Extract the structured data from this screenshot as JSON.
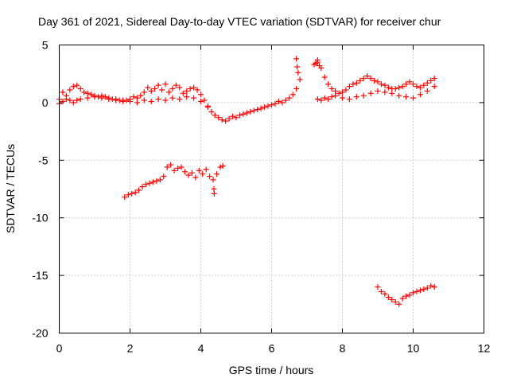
{
  "chart_data": {
    "type": "scatter",
    "title": "Day 361 of 2021, Sidereal Day-to-day VTEC variation (SDTVAR) for receiver chur",
    "xlabel": "GPS time / hours",
    "ylabel": "SDTVAR / TECUs",
    "xlim": [
      0,
      12
    ],
    "ylim": [
      -20,
      5
    ],
    "xticks": [
      "0",
      "2",
      "4",
      "6",
      "8",
      "10",
      "12"
    ],
    "yticks": [
      "5",
      "0",
      "-5",
      "-10",
      "-15",
      "-20"
    ],
    "grid": true,
    "marker": "+",
    "color": "#ff0000",
    "series": [
      {
        "name": "SDTVAR",
        "x": [
          0.0,
          0.1,
          0.2,
          0.3,
          0.4,
          0.5,
          0.6,
          0.7,
          0.8,
          0.9,
          1.0,
          1.1,
          1.2,
          1.3,
          1.4,
          1.5,
          1.6,
          1.7,
          1.8,
          1.9,
          2.0,
          2.1,
          2.2,
          2.3,
          2.4,
          2.5,
          2.6,
          2.7,
          2.8,
          2.9,
          3.0,
          3.1,
          3.2,
          3.3,
          3.4,
          3.5,
          3.6,
          3.7,
          3.8,
          3.9,
          4.0,
          4.1,
          4.2,
          4.3,
          4.4,
          4.5,
          4.6,
          4.7,
          4.8,
          4.9,
          5.0,
          5.1,
          5.2,
          5.3,
          5.4,
          5.5,
          5.6,
          5.7,
          5.8,
          5.9,
          6.0,
          6.1,
          6.2,
          6.3,
          6.4,
          6.5,
          6.6,
          6.7,
          6.8,
          7.2,
          7.3,
          7.4,
          7.5,
          7.6,
          7.7,
          7.8,
          7.9,
          8.0,
          8.1,
          8.2,
          8.3,
          8.4,
          8.5,
          8.6,
          8.7,
          8.8,
          8.9,
          9.0,
          9.1,
          9.2,
          9.3,
          9.4,
          9.5,
          9.6,
          9.7,
          9.8,
          9.9,
          10.0,
          10.1,
          10.2,
          10.3,
          10.4,
          10.5,
          10.6,
          0.0,
          0.1,
          0.2,
          0.3,
          0.4,
          0.5,
          0.6,
          0.8,
          1.0,
          1.2,
          1.4,
          1.6,
          1.8,
          2.0,
          2.2,
          2.4,
          2.6,
          2.8,
          3.0,
          3.2,
          3.4,
          3.6,
          3.8,
          4.0,
          4.2,
          7.3,
          7.4,
          7.5,
          7.6,
          7.7,
          7.8,
          8.0,
          8.2,
          8.4,
          8.6,
          8.8,
          9.0,
          9.2,
          9.4,
          9.6,
          9.8,
          10.0,
          10.2,
          10.4,
          10.6,
          6.7,
          6.72,
          6.75,
          7.25,
          7.3,
          7.35,
          1.85,
          1.95,
          2.05,
          2.15,
          2.25,
          2.35,
          2.45,
          2.55,
          2.65,
          2.75,
          2.85,
          2.95,
          3.05,
          3.15,
          3.25,
          3.35,
          3.45,
          3.55,
          3.65,
          3.75,
          3.85,
          3.95,
          4.05,
          4.15,
          4.25,
          4.35,
          4.45,
          4.55,
          4.62,
          4.37,
          4.38,
          9.0,
          9.1,
          9.2,
          9.3,
          9.4,
          9.5,
          9.6,
          9.7,
          9.8,
          9.9,
          10.0,
          10.1,
          10.2,
          10.3,
          10.4,
          10.5,
          10.6
        ],
        "y": [
          0.3,
          0.9,
          0.6,
          1.1,
          1.4,
          1.5,
          1.2,
          0.9,
          0.8,
          0.7,
          0.6,
          0.5,
          0.6,
          0.5,
          0.4,
          0.3,
          0.3,
          0.2,
          0.1,
          0.2,
          0.3,
          0.5,
          0.4,
          0.6,
          0.9,
          1.3,
          1.0,
          1.2,
          1.5,
          1.1,
          1.6,
          0.9,
          1.2,
          1.5,
          1.3,
          0.8,
          1.0,
          1.2,
          1.3,
          1.1,
          0.7,
          0.2,
          -0.4,
          -0.8,
          -1.1,
          -1.3,
          -1.5,
          -1.6,
          -1.4,
          -1.2,
          -1.3,
          -1.1,
          -1.0,
          -0.9,
          -0.8,
          -0.7,
          -0.6,
          -0.5,
          -0.4,
          -0.3,
          -0.2,
          -0.1,
          0.1,
          0.0,
          0.2,
          0.4,
          0.7,
          1.2,
          2.0,
          3.3,
          3.5,
          3.0,
          2.2,
          1.6,
          1.2,
          1.0,
          0.8,
          0.9,
          1.1,
          1.4,
          1.6,
          1.7,
          1.9,
          2.1,
          2.3,
          2.1,
          1.9,
          1.8,
          1.6,
          1.5,
          1.3,
          1.2,
          1.2,
          1.3,
          1.4,
          1.6,
          1.8,
          1.6,
          1.4,
          1.3,
          1.5,
          1.7,
          1.9,
          2.1,
          -0.1,
          0.1,
          0.3,
          0.2,
          0.0,
          0.2,
          0.3,
          0.4,
          0.5,
          0.4,
          0.3,
          0.2,
          0.2,
          0.1,
          0.0,
          0.2,
          0.1,
          0.3,
          0.2,
          0.4,
          0.3,
          0.5,
          0.4,
          0.1,
          -0.3,
          0.3,
          0.2,
          0.4,
          0.3,
          0.5,
          0.6,
          0.4,
          0.3,
          0.5,
          0.6,
          0.8,
          1.0,
          0.9,
          0.8,
          0.6,
          0.5,
          0.4,
          0.7,
          1.0,
          1.4,
          3.8,
          3.1,
          2.6,
          3.4,
          3.7,
          3.2,
          -8.2,
          -8.0,
          -7.9,
          -7.8,
          -7.6,
          -7.3,
          -7.1,
          -7.0,
          -6.9,
          -6.8,
          -6.7,
          -6.4,
          -5.6,
          -5.4,
          -5.9,
          -5.7,
          -5.6,
          -6.0,
          -6.3,
          -6.1,
          -6.5,
          -5.9,
          -6.2,
          -5.8,
          -6.4,
          -6.7,
          -6.2,
          -5.6,
          -5.5,
          -7.5,
          -7.9,
          -16.0,
          -16.4,
          -16.6,
          -16.9,
          -17.1,
          -17.3,
          -17.5,
          -17.0,
          -16.8,
          -16.7,
          -16.5,
          -16.4,
          -16.3,
          -16.2,
          -16.1,
          -15.9,
          -16.0
        ]
      }
    ]
  }
}
